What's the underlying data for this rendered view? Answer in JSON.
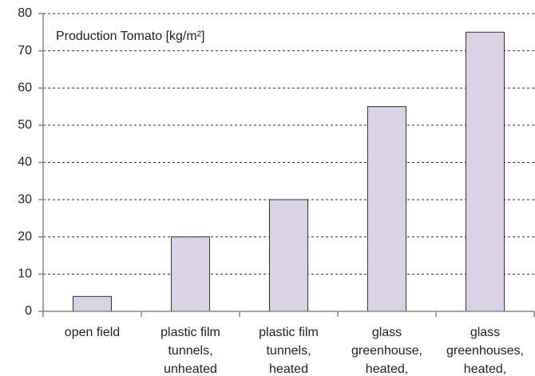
{
  "chart_data": {
    "type": "bar",
    "title": "Production Tomato [kg/m²]",
    "categories": [
      [
        "open field"
      ],
      [
        "plastic film",
        "tunnels,",
        "unheated"
      ],
      [
        "plastic film",
        "tunnels,",
        "heated"
      ],
      [
        "glass",
        "greenhouse,",
        "heated,"
      ],
      [
        "glass",
        "greenhouses,",
        "heated,"
      ]
    ],
    "values": [
      4,
      20,
      30,
      55,
      75
    ],
    "color": "#d9d3e5",
    "ylim": [
      0,
      80
    ],
    "yticks": [
      0,
      10,
      20,
      30,
      40,
      50,
      60,
      70,
      80
    ],
    "grid": true
  }
}
